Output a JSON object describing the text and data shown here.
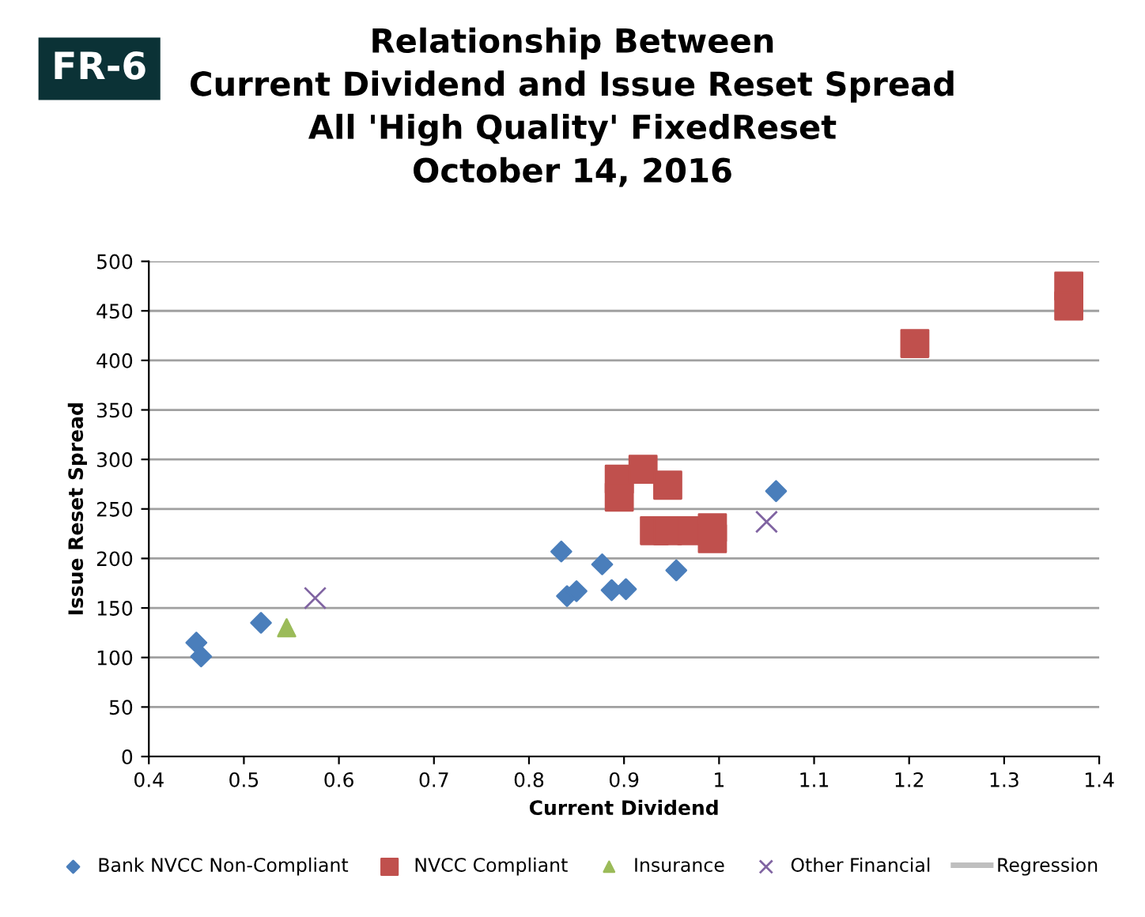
{
  "chart_data": {
    "type": "scatter",
    "title": "Relationship Between\nCurrent Dividend and Issue Reset Spread\nAll 'High Quality' FixedReset\nOctober 14, 2016",
    "xlabel": "Current Dividend",
    "ylabel": "Issue Reset Spread",
    "annotations": [
      "FR-6"
    ],
    "xlim": [
      0.4,
      1.4
    ],
    "xticks": [
      {
        "value": 0.4,
        "label": "0.4"
      },
      {
        "value": 0.5,
        "label": "0.5"
      },
      {
        "value": 0.6,
        "label": "0.6"
      },
      {
        "value": 0.7,
        "label": "0.7"
      },
      {
        "value": 0.8,
        "label": "0.8"
      },
      {
        "value": 0.9,
        "label": "0.9"
      },
      {
        "value": 1.0,
        "label": "1"
      },
      {
        "value": 1.1,
        "label": "1.1"
      },
      {
        "value": 1.2,
        "label": "1.2"
      },
      {
        "value": 1.3,
        "label": "1.3"
      },
      {
        "value": 1.4,
        "label": "1.4"
      }
    ],
    "ylim": [
      0,
      500
    ],
    "yticks": [
      0,
      50,
      100,
      150,
      200,
      250,
      300,
      350,
      400,
      450,
      500
    ],
    "grid": "y",
    "legend": "bottom",
    "series": [
      {
        "name": "Bank NVCC Non-Compliant",
        "color": "#4a7ebb",
        "marker": "diamond",
        "x": [
          0.45,
          0.455,
          0.518,
          0.834,
          0.84,
          0.85,
          0.877,
          0.887,
          0.902,
          0.955,
          1.06
        ],
        "values": [
          115,
          101,
          135,
          207,
          162,
          167,
          194,
          168,
          169,
          188,
          268
        ]
      },
      {
        "name": "NVCC Compliant",
        "color": "#c0504d",
        "marker": "square",
        "x": [
          0.895,
          0.895,
          0.92,
          0.946,
          0.932,
          0.946,
          0.971,
          0.993,
          0.993,
          1.206,
          1.368,
          1.368
        ],
        "values": [
          280,
          262,
          290,
          274,
          228,
          228,
          228,
          231,
          220,
          417,
          475,
          455
        ]
      },
      {
        "name": "Insurance",
        "color": "#9bbb59",
        "marker": "triangle",
        "x": [
          0.545
        ],
        "values": [
          130
        ]
      },
      {
        "name": "Other Financial",
        "color": "#8064a2",
        "marker": "cross",
        "x": [
          0.575,
          1.05
        ],
        "values": [
          160,
          237
        ]
      },
      {
        "name": "Regression",
        "type": "line",
        "color": "#bfbfbf",
        "marker": "none"
      }
    ]
  }
}
